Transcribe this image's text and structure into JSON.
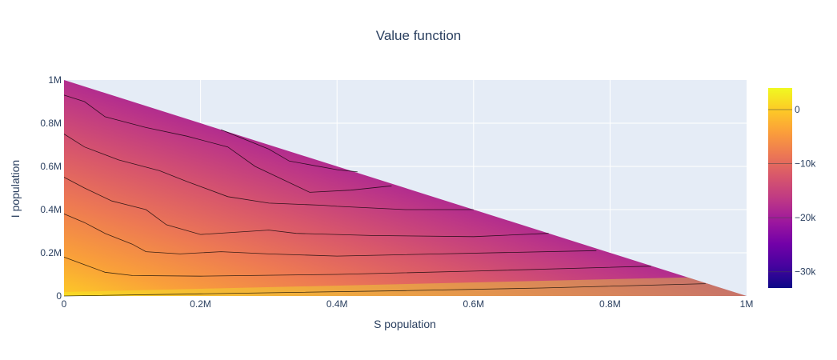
{
  "chart_data": {
    "type": "contour",
    "title": "Value function",
    "xlabel": "S population",
    "ylabel": "I population",
    "xlim": [
      0,
      1000000
    ],
    "ylim": [
      0,
      1000000
    ],
    "x_ticks": [
      {
        "value": 0,
        "label": "0"
      },
      {
        "value": 200000,
        "label": "0.2M"
      },
      {
        "value": 400000,
        "label": "0.4M"
      },
      {
        "value": 600000,
        "label": "0.6M"
      },
      {
        "value": 800000,
        "label": "0.8M"
      },
      {
        "value": 1000000,
        "label": "1M"
      }
    ],
    "y_ticks": [
      {
        "value": 0,
        "label": "0"
      },
      {
        "value": 200000,
        "label": "0.2M"
      },
      {
        "value": 400000,
        "label": "0.4M"
      },
      {
        "value": 600000,
        "label": "0.6M"
      },
      {
        "value": 800000,
        "label": "0.8M"
      },
      {
        "value": 1000000,
        "label": "1M"
      }
    ],
    "domain": "S + I <= 1M (lower-left triangle)",
    "grid": true,
    "colorscale": "plasma",
    "colorbar": {
      "range": [
        -33000,
        4000
      ],
      "ticks": [
        {
          "value": 0,
          "label": "0"
        },
        {
          "value": -10000,
          "label": "−10k"
        },
        {
          "value": -20000,
          "label": "−20k"
        },
        {
          "value": -30000,
          "label": "−30k"
        }
      ],
      "placement": "right"
    },
    "colors": {
      "background": "#E5ECF6",
      "grid": "#FFFFFF",
      "contour_line": "#000000"
    },
    "contours": [
      {
        "level": 0,
        "points": [
          [
            0,
            0
          ],
          [
            200000,
            10000
          ],
          [
            500000,
            25000
          ],
          [
            700000,
            37000
          ],
          [
            940000,
            57000
          ]
        ]
      },
      {
        "level": -4000,
        "points": [
          [
            0,
            180000
          ],
          [
            30000,
            145000
          ],
          [
            60000,
            110000
          ],
          [
            100000,
            95000
          ],
          [
            200000,
            92000
          ],
          [
            400000,
            100000
          ],
          [
            600000,
            115000
          ],
          [
            860000,
            138000
          ]
        ]
      },
      {
        "level": -8000,
        "points": [
          [
            0,
            380000
          ],
          [
            30000,
            340000
          ],
          [
            60000,
            290000
          ],
          [
            100000,
            240000
          ],
          [
            120000,
            205000
          ],
          [
            170000,
            195000
          ],
          [
            230000,
            205000
          ],
          [
            300000,
            195000
          ],
          [
            400000,
            185000
          ],
          [
            550000,
            195000
          ],
          [
            780000,
            210000
          ]
        ]
      },
      {
        "level": -12000,
        "points": [
          [
            0,
            550000
          ],
          [
            30000,
            500000
          ],
          [
            70000,
            440000
          ],
          [
            120000,
            400000
          ],
          [
            150000,
            330000
          ],
          [
            200000,
            285000
          ],
          [
            300000,
            305000
          ],
          [
            340000,
            290000
          ],
          [
            450000,
            280000
          ],
          [
            600000,
            275000
          ],
          [
            710000,
            290000
          ]
        ]
      },
      {
        "level": -16000,
        "points": [
          [
            0,
            750000
          ],
          [
            30000,
            690000
          ],
          [
            80000,
            630000
          ],
          [
            140000,
            580000
          ],
          [
            180000,
            530000
          ],
          [
            240000,
            460000
          ],
          [
            300000,
            430000
          ],
          [
            380000,
            420000
          ],
          [
            400000,
            415000
          ],
          [
            500000,
            400000
          ],
          [
            600000,
            400000
          ]
        ]
      },
      {
        "level": -20000,
        "points": [
          [
            0,
            930000
          ],
          [
            30000,
            900000
          ],
          [
            60000,
            830000
          ],
          [
            120000,
            780000
          ],
          [
            180000,
            740000
          ],
          [
            240000,
            690000
          ],
          [
            280000,
            600000
          ],
          [
            360000,
            480000
          ],
          [
            420000,
            490000
          ],
          [
            480000,
            510000
          ]
        ]
      },
      {
        "level": -24000,
        "points": [
          [
            230000,
            770000
          ],
          [
            300000,
            680000
          ],
          [
            330000,
            625000
          ],
          [
            400000,
            585000
          ],
          [
            430000,
            575000
          ]
        ]
      }
    ]
  }
}
